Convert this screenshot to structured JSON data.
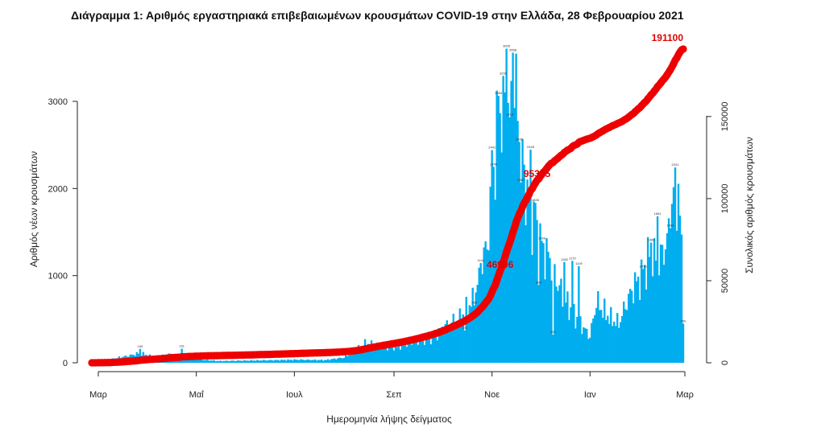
{
  "chart_data": {
    "type": "bar",
    "title": "Διάγραμμα 1: Αριθμός εργαστηριακά επιβεβαιωμένων κρουσμάτων COVID-19 στην Ελλάδα, 28 Φεβρουαρίου 2021",
    "xlabel": "Ημερομηνία λήψης δείγματος",
    "ylabel_left": "Αριθμός νέων κρουσμάτων",
    "ylabel_right": "Συνολικός αριθμός κρουσμάτων",
    "x_ticks": [
      "Μαρ",
      "Μαΐ",
      "Ιουλ",
      "Σεπ",
      "Νοε",
      "Ιαν",
      "Μαρ"
    ],
    "ylim_left": [
      0,
      3800
    ],
    "y_ticks_left": [
      0,
      1000,
      2000,
      3000
    ],
    "ylim_right": [
      0,
      191100
    ],
    "y_ticks_right": [
      0,
      50000,
      100000,
      150000
    ],
    "grid": false,
    "colors": {
      "bars": "#00aeef",
      "cumulative": "#ee0000",
      "text": "#222222"
    },
    "x_dates": {
      "start": "2020-02-26",
      "end": "2021-02-28",
      "x_ticks": [
        "2020-03-01",
        "2020-05-01",
        "2020-07-01",
        "2020-09-01",
        "2020-11-01",
        "2021-01-01",
        "2021-03-01"
      ]
    },
    "daily_anchor_dates": [
      "2020-02-26",
      "2020-03-06",
      "2020-03-14",
      "2020-03-20",
      "2020-03-27",
      "2020-04-05",
      "2020-04-14",
      "2020-04-21",
      "2020-04-30",
      "2020-05-15",
      "2020-06-01",
      "2020-06-20",
      "2020-07-05",
      "2020-07-20",
      "2020-08-01",
      "2020-08-08",
      "2020-08-15",
      "2020-08-25",
      "2020-09-05",
      "2020-09-15",
      "2020-09-25",
      "2020-10-05",
      "2020-10-12",
      "2020-10-20",
      "2020-10-25",
      "2020-10-30",
      "2020-11-04",
      "2020-11-07",
      "2020-11-10",
      "2020-11-14",
      "2020-11-17",
      "2020-11-22",
      "2020-11-27",
      "2020-12-02",
      "2020-12-07",
      "2020-12-12",
      "2020-12-17",
      "2020-12-22",
      "2020-12-26",
      "2021-01-01",
      "2021-01-05",
      "2021-01-09",
      "2021-01-14",
      "2021-01-19",
      "2021-01-24",
      "2021-01-29",
      "2021-02-03",
      "2021-02-08",
      "2021-02-12",
      "2021-02-16",
      "2021-02-20",
      "2021-02-23",
      "2021-02-26",
      "2021-02-28"
    ],
    "daily_anchor_values": [
      3,
      20,
      60,
      80,
      110,
      60,
      100,
      60,
      40,
      20,
      25,
      30,
      35,
      30,
      60,
      130,
      230,
      180,
      190,
      250,
      300,
      450,
      500,
      700,
      1000,
      1500,
      2500,
      3000,
      3600,
      3400,
      2800,
      2000,
      1600,
      1300,
      1200,
      900,
      700,
      550,
      450,
      300,
      700,
      600,
      500,
      450,
      700,
      900,
      1000,
      1300,
      1100,
      1300,
      1500,
      2241,
      1700,
      800
    ],
    "series": [
      {
        "name": "Αριθμός νέων κρουσμάτων",
        "axis": "left",
        "type": "bar",
        "values": "daily (interpolated from anchors)"
      },
      {
        "name": "Συνολικός αριθμός κρουσμάτων",
        "axis": "right",
        "type": "line",
        "values": "cumulative sum of daily"
      }
    ],
    "cumulative_labels": [
      {
        "text": "191100",
        "date": "2021-02-28"
      },
      {
        "text": "95375",
        "date": "2020-11-29"
      },
      {
        "text": "46996",
        "date": "2020-11-06"
      }
    ],
    "bar_labels": [
      {
        "text": "3605",
        "date": "2020-11-10",
        "value": 3605
      },
      {
        "text": "3558",
        "date": "2020-11-14",
        "value": 3558
      },
      {
        "text": "3292",
        "date": "2020-11-08",
        "value": 3292
      },
      {
        "text": "3063",
        "date": "2020-11-05",
        "value": 3063
      },
      {
        "text": "2818",
        "date": "2020-11-12",
        "value": 2818
      },
      {
        "text": "2535",
        "date": "2020-11-18",
        "value": 2535
      },
      {
        "text": "2445",
        "date": "2020-11-25",
        "value": 2445
      },
      {
        "text": "2441",
        "date": "2020-11-01",
        "value": 2441
      },
      {
        "text": "2249",
        "date": "2020-11-02",
        "value": 2249
      },
      {
        "text": "2241",
        "date": "2021-02-23",
        "value": 2241
      },
      {
        "text": "2067",
        "date": "2020-11-19",
        "value": 2067
      },
      {
        "text": "1835",
        "date": "2020-11-28",
        "value": 1835
      },
      {
        "text": "1681",
        "date": "2021-02-12",
        "value": 1681
      },
      {
        "text": "1544",
        "date": "2021-02-20",
        "value": 1544
      },
      {
        "text": "1399",
        "date": "2020-12-02",
        "value": 1399
      },
      {
        "text": "1380",
        "date": "2021-02-08",
        "value": 1380
      },
      {
        "text": "1170",
        "date": "2020-12-21",
        "value": 1170
      },
      {
        "text": "1156",
        "date": "2020-12-16",
        "value": 1156
      },
      {
        "text": "1144",
        "date": "2020-10-25",
        "value": 1144
      },
      {
        "text": "1109",
        "date": "2020-12-25",
        "value": 1109
      },
      {
        "text": "1076",
        "date": "2021-02-03",
        "value": 1076
      },
      {
        "text": "893",
        "date": "2020-11-30",
        "value": 893
      },
      {
        "text": "659",
        "date": "2020-10-21",
        "value": 659
      },
      {
        "text": "450",
        "date": "2021-02-28",
        "value": 450
      },
      {
        "text": "370",
        "date": "2020-10-15",
        "value": 370
      },
      {
        "text": "322",
        "date": "2020-12-09",
        "value": 322
      },
      {
        "text": "159",
        "date": "2020-03-27",
        "value": 159
      },
      {
        "text": "161",
        "date": "2020-04-22",
        "value": 161
      }
    ]
  }
}
